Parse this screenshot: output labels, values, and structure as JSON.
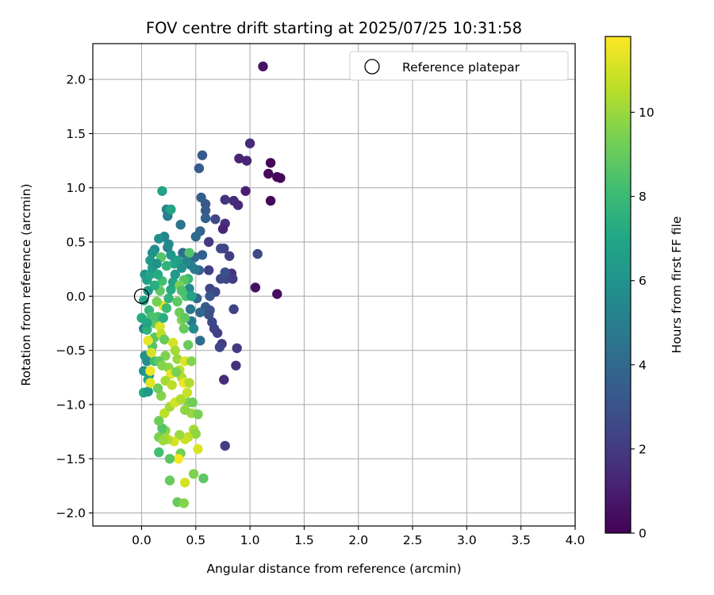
{
  "chart_data": {
    "type": "scatter",
    "title": "FOV centre drift starting at 2025/07/25 10:31:58",
    "xlabel": "Angular distance from reference (arcmin)",
    "ylabel": "Rotation from reference (arcmin)",
    "xlim": [
      -0.45,
      4.0
    ],
    "ylim": [
      -2.12,
      2.33
    ],
    "xticks": [
      0.0,
      0.5,
      1.0,
      1.5,
      2.0,
      2.5,
      3.0,
      3.5,
      4.0
    ],
    "xtick_labels": [
      "0.0",
      "0.5",
      "1.0",
      "1.5",
      "2.0",
      "2.5",
      "3.0",
      "3.5",
      "4.0"
    ],
    "yticks": [
      -2.0,
      -1.5,
      -1.0,
      -0.5,
      0.0,
      0.5,
      1.0,
      1.5,
      2.0
    ],
    "ytick_labels": [
      "−2.0",
      "−1.5",
      "−1.0",
      "−0.5",
      "0.0",
      "0.5",
      "1.0",
      "1.5",
      "2.0"
    ],
    "grid": true,
    "legend": {
      "position": "top-right",
      "entries": [
        {
          "label": "Reference platepar",
          "marker": "open-circle"
        }
      ]
    },
    "reference_point": {
      "x": 0.0,
      "y": 0.0
    },
    "colorbar": {
      "label": "Hours from first FF file",
      "range": [
        0,
        11.8
      ],
      "ticks": [
        0,
        2,
        4,
        6,
        8,
        10
      ],
      "tick_labels": [
        "0",
        "2",
        "4",
        "6",
        "8",
        "10"
      ],
      "colormap": "viridis"
    },
    "points": [
      {
        "x": 1.12,
        "y": 2.12,
        "c": 0.6
      },
      {
        "x": 1.19,
        "y": 1.23,
        "c": 0.2
      },
      {
        "x": 1.17,
        "y": 1.13,
        "c": 0.3
      },
      {
        "x": 1.25,
        "y": 1.1,
        "c": 0.3
      },
      {
        "x": 1.28,
        "y": 1.09,
        "c": 0.2
      },
      {
        "x": 1.19,
        "y": 0.88,
        "c": 0.2
      },
      {
        "x": 1.25,
        "y": 0.02,
        "c": 0.4
      },
      {
        "x": 1.05,
        "y": 0.08,
        "c": 0.5
      },
      {
        "x": 1.0,
        "y": 1.41,
        "c": 1.4
      },
      {
        "x": 0.97,
        "y": 1.25,
        "c": 1.2
      },
      {
        "x": 0.9,
        "y": 1.27,
        "c": 1.2
      },
      {
        "x": 0.96,
        "y": 0.97,
        "c": 1.0
      },
      {
        "x": 0.85,
        "y": 0.88,
        "c": 1.5
      },
      {
        "x": 0.89,
        "y": 0.84,
        "c": 1.4
      },
      {
        "x": 0.77,
        "y": 0.89,
        "c": 1.8
      },
      {
        "x": 0.77,
        "y": 0.67,
        "c": 1.6
      },
      {
        "x": 0.75,
        "y": 0.62,
        "c": 1.2
      },
      {
        "x": 0.68,
        "y": 0.71,
        "c": 2.5
      },
      {
        "x": 1.07,
        "y": 0.39,
        "c": 2.6
      },
      {
        "x": 0.81,
        "y": 0.37,
        "c": 2.2
      },
      {
        "x": 0.83,
        "y": 0.21,
        "c": 1.8
      },
      {
        "x": 0.84,
        "y": 0.16,
        "c": 2.0
      },
      {
        "x": 0.78,
        "y": 0.16,
        "c": 2.4
      },
      {
        "x": 0.73,
        "y": 0.16,
        "c": 2.6
      },
      {
        "x": 0.77,
        "y": 0.22,
        "c": 2.9
      },
      {
        "x": 0.73,
        "y": 0.44,
        "c": 2.8
      },
      {
        "x": 0.76,
        "y": 0.44,
        "c": 2.4
      },
      {
        "x": 0.62,
        "y": 0.5,
        "c": 2.0
      },
      {
        "x": 0.62,
        "y": 0.24,
        "c": 2.2
      },
      {
        "x": 0.85,
        "y": -0.12,
        "c": 2.3
      },
      {
        "x": 0.63,
        "y": 0.07,
        "c": 2.5
      },
      {
        "x": 0.68,
        "y": 0.04,
        "c": 2.6
      },
      {
        "x": 0.63,
        "y": 0.0,
        "c": 3.0
      },
      {
        "x": 0.59,
        "y": -0.1,
        "c": 3.4
      },
      {
        "x": 0.63,
        "y": -0.13,
        "c": 3.0
      },
      {
        "x": 0.62,
        "y": -0.17,
        "c": 2.8
      },
      {
        "x": 0.65,
        "y": -0.24,
        "c": 2.6
      },
      {
        "x": 0.67,
        "y": -0.3,
        "c": 2.4
      },
      {
        "x": 0.7,
        "y": -0.34,
        "c": 2.2
      },
      {
        "x": 0.74,
        "y": -0.44,
        "c": 2.0
      },
      {
        "x": 0.72,
        "y": -0.47,
        "c": 2.4
      },
      {
        "x": 0.88,
        "y": -0.48,
        "c": 2.0
      },
      {
        "x": 0.87,
        "y": -0.64,
        "c": 1.6
      },
      {
        "x": 0.76,
        "y": -0.77,
        "c": 1.5
      },
      {
        "x": 0.77,
        "y": -1.38,
        "c": 2.1
      },
      {
        "x": 0.56,
        "y": 1.3,
        "c": 3.3
      },
      {
        "x": 0.53,
        "y": 1.18,
        "c": 3.4
      },
      {
        "x": 0.59,
        "y": 0.85,
        "c": 3.2
      },
      {
        "x": 0.55,
        "y": 0.91,
        "c": 3.5
      },
      {
        "x": 0.59,
        "y": 0.79,
        "c": 3.4
      },
      {
        "x": 0.59,
        "y": 0.72,
        "c": 3.6
      },
      {
        "x": 0.54,
        "y": 0.6,
        "c": 3.8
      },
      {
        "x": 0.5,
        "y": 0.55,
        "c": 4.0
      },
      {
        "x": 0.56,
        "y": 0.38,
        "c": 3.6
      },
      {
        "x": 0.49,
        "y": 0.36,
        "c": 3.9
      },
      {
        "x": 0.43,
        "y": 0.36,
        "c": 4.0
      },
      {
        "x": 0.38,
        "y": 0.4,
        "c": 4.2
      },
      {
        "x": 0.36,
        "y": 0.66,
        "c": 4.6
      },
      {
        "x": 0.23,
        "y": 0.8,
        "c": 5.3
      },
      {
        "x": 0.24,
        "y": 0.74,
        "c": 5.0
      },
      {
        "x": 0.19,
        "y": 0.97,
        "c": 6.8
      },
      {
        "x": 0.27,
        "y": 0.8,
        "c": 6.9
      },
      {
        "x": 0.21,
        "y": 0.55,
        "c": 5.3
      },
      {
        "x": 0.24,
        "y": 0.45,
        "c": 5.2
      },
      {
        "x": 0.25,
        "y": 0.48,
        "c": 5.5
      },
      {
        "x": 0.44,
        "y": 0.4,
        "c": 8.5
      },
      {
        "x": 0.53,
        "y": 0.24,
        "c": 3.8
      },
      {
        "x": 0.51,
        "y": -0.02,
        "c": 3.9
      },
      {
        "x": 0.54,
        "y": -0.15,
        "c": 3.9
      },
      {
        "x": 0.54,
        "y": -0.41,
        "c": 4.2
      },
      {
        "x": 0.44,
        "y": 0.07,
        "c": 5.6
      },
      {
        "x": 0.45,
        "y": -0.12,
        "c": 4.6
      },
      {
        "x": 0.46,
        "y": -0.23,
        "c": 4.8
      },
      {
        "x": 0.12,
        "y": 0.43,
        "c": 5.5
      },
      {
        "x": 0.1,
        "y": 0.4,
        "c": 6.0
      },
      {
        "x": 0.08,
        "y": 0.33,
        "c": 6.3
      },
      {
        "x": 0.16,
        "y": 0.53,
        "c": 5.8
      },
      {
        "x": 0.18,
        "y": 0.36,
        "c": 8.6
      },
      {
        "x": 0.03,
        "y": 0.2,
        "c": 6.1
      },
      {
        "x": 0.05,
        "y": 0.15,
        "c": 6.6
      },
      {
        "x": 0.08,
        "y": 0.2,
        "c": 7.0
      },
      {
        "x": 0.06,
        "y": 0.05,
        "c": 6.3
      },
      {
        "x": 0.02,
        "y": -0.04,
        "c": 6.8
      },
      {
        "x": 0.0,
        "y": -0.2,
        "c": 7.2
      },
      {
        "x": 0.02,
        "y": -0.3,
        "c": 5.4
      },
      {
        "x": 0.05,
        "y": -0.31,
        "c": 7.6
      },
      {
        "x": 0.07,
        "y": -0.13,
        "c": 7.8
      },
      {
        "x": 0.03,
        "y": -0.55,
        "c": 6.0
      },
      {
        "x": 0.05,
        "y": -0.6,
        "c": 5.8
      },
      {
        "x": 0.02,
        "y": -0.69,
        "c": 5.9
      },
      {
        "x": 0.07,
        "y": -0.73,
        "c": 6.2
      },
      {
        "x": 0.06,
        "y": -0.77,
        "c": 6.8
      },
      {
        "x": 0.02,
        "y": -0.89,
        "c": 7.0
      },
      {
        "x": 0.06,
        "y": -0.88,
        "c": 6.4
      },
      {
        "x": 0.12,
        "y": -0.6,
        "c": 8.2
      },
      {
        "x": 0.1,
        "y": -0.46,
        "c": 8.6
      },
      {
        "x": 0.12,
        "y": -0.38,
        "c": 8.8
      },
      {
        "x": 0.12,
        "y": -0.25,
        "c": 9.0
      },
      {
        "x": 0.15,
        "y": -0.19,
        "c": 8.4
      },
      {
        "x": 0.17,
        "y": -0.28,
        "c": 11.2
      },
      {
        "x": 0.18,
        "y": -0.35,
        "c": 10.6
      },
      {
        "x": 0.2,
        "y": -0.09,
        "c": 11.3
      },
      {
        "x": 0.21,
        "y": -0.4,
        "c": 9.0
      },
      {
        "x": 0.22,
        "y": -0.55,
        "c": 9.5
      },
      {
        "x": 0.25,
        "y": -0.66,
        "c": 9.8
      },
      {
        "x": 0.27,
        "y": -0.72,
        "c": 11.4
      },
      {
        "x": 0.29,
        "y": -0.43,
        "c": 11.1
      },
      {
        "x": 0.31,
        "y": -0.5,
        "c": 10.2
      },
      {
        "x": 0.33,
        "y": -0.58,
        "c": 10.0
      },
      {
        "x": 0.35,
        "y": -0.68,
        "c": 10.6
      },
      {
        "x": 0.37,
        "y": -0.75,
        "c": 10.4
      },
      {
        "x": 0.39,
        "y": -0.8,
        "c": 11.5
      },
      {
        "x": 0.4,
        "y": -0.6,
        "c": 11.2
      },
      {
        "x": 0.42,
        "y": -0.89,
        "c": 10.8
      },
      {
        "x": 0.43,
        "y": -0.98,
        "c": 9.6
      },
      {
        "x": 0.47,
        "y": -0.98,
        "c": 9.2
      },
      {
        "x": 0.46,
        "y": -1.08,
        "c": 10.0
      },
      {
        "x": 0.52,
        "y": -1.09,
        "c": 9.4
      },
      {
        "x": 0.48,
        "y": -1.23,
        "c": 10.2
      },
      {
        "x": 0.5,
        "y": -1.27,
        "c": 9.8
      },
      {
        "x": 0.52,
        "y": -1.41,
        "c": 11.2
      },
      {
        "x": 0.43,
        "y": -1.3,
        "c": 10.6
      },
      {
        "x": 0.4,
        "y": -1.32,
        "c": 10.9
      },
      {
        "x": 0.35,
        "y": -1.28,
        "c": 10.0
      },
      {
        "x": 0.36,
        "y": -1.45,
        "c": 9.3
      },
      {
        "x": 0.34,
        "y": -1.5,
        "c": 11.6
      },
      {
        "x": 0.3,
        "y": -1.34,
        "c": 11.0
      },
      {
        "x": 0.24,
        "y": -1.32,
        "c": 10.4
      },
      {
        "x": 0.22,
        "y": -1.24,
        "c": 9.8
      },
      {
        "x": 0.19,
        "y": -1.22,
        "c": 8.6
      },
      {
        "x": 0.16,
        "y": -1.15,
        "c": 9.2
      },
      {
        "x": 0.16,
        "y": -1.3,
        "c": 9.4
      },
      {
        "x": 0.16,
        "y": -1.44,
        "c": 8.2
      },
      {
        "x": 0.2,
        "y": -1.33,
        "c": 10.0
      },
      {
        "x": 0.26,
        "y": -1.5,
        "c": 8.7
      },
      {
        "x": 0.26,
        "y": -1.7,
        "c": 9.0
      },
      {
        "x": 0.33,
        "y": -1.9,
        "c": 9.0
      },
      {
        "x": 0.39,
        "y": -1.91,
        "c": 9.6
      },
      {
        "x": 0.4,
        "y": -1.72,
        "c": 11.0
      },
      {
        "x": 0.48,
        "y": -1.64,
        "c": 9.5
      },
      {
        "x": 0.57,
        "y": -1.68,
        "c": 8.8
      },
      {
        "x": 0.21,
        "y": -1.08,
        "c": 10.6
      },
      {
        "x": 0.26,
        "y": -1.02,
        "c": 10.2
      },
      {
        "x": 0.31,
        "y": -0.98,
        "c": 11.0
      },
      {
        "x": 0.18,
        "y": -0.92,
        "c": 9.6
      },
      {
        "x": 0.15,
        "y": -0.85,
        "c": 9.2
      },
      {
        "x": 0.08,
        "y": -0.8,
        "c": 11.3
      },
      {
        "x": 0.08,
        "y": -0.69,
        "c": 11.5
      },
      {
        "x": 0.09,
        "y": -0.52,
        "c": 11.1
      },
      {
        "x": 0.06,
        "y": -0.41,
        "c": 11.4
      },
      {
        "x": 0.2,
        "y": -0.2,
        "c": 7.4
      },
      {
        "x": 0.23,
        "y": -0.11,
        "c": 8.0
      },
      {
        "x": 0.25,
        "y": -0.02,
        "c": 7.6
      },
      {
        "x": 0.27,
        "y": 0.06,
        "c": 7.2
      },
      {
        "x": 0.29,
        "y": 0.13,
        "c": 6.8
      },
      {
        "x": 0.31,
        "y": 0.2,
        "c": 6.4
      },
      {
        "x": 0.33,
        "y": -0.05,
        "c": 8.8
      },
      {
        "x": 0.35,
        "y": -0.15,
        "c": 9.2
      },
      {
        "x": 0.37,
        "y": -0.22,
        "c": 9.6
      },
      {
        "x": 0.39,
        "y": -0.3,
        "c": 9.0
      },
      {
        "x": 0.41,
        "y": 0.0,
        "c": 8.4
      },
      {
        "x": 0.43,
        "y": 0.16,
        "c": 7.8
      },
      {
        "x": 0.39,
        "y": 0.15,
        "c": 8.6
      },
      {
        "x": 0.35,
        "y": 0.1,
        "c": 9.4
      },
      {
        "x": 0.3,
        "y": 0.3,
        "c": 7.0
      },
      {
        "x": 0.27,
        "y": 0.38,
        "c": 6.2
      },
      {
        "x": 0.23,
        "y": 0.28,
        "c": 7.6
      },
      {
        "x": 0.19,
        "y": 0.14,
        "c": 8.2
      },
      {
        "x": 0.17,
        "y": 0.05,
        "c": 8.8
      },
      {
        "x": 0.14,
        "y": -0.05,
        "c": 9.4
      },
      {
        "x": 0.12,
        "y": 0.1,
        "c": 7.4
      },
      {
        "x": 0.1,
        "y": 0.26,
        "c": 6.4
      },
      {
        "x": 0.14,
        "y": 0.3,
        "c": 6.0
      },
      {
        "x": 0.15,
        "y": 0.2,
        "c": 7.2
      },
      {
        "x": 0.09,
        "y": -0.19,
        "c": 8.4
      },
      {
        "x": 0.05,
        "y": -0.25,
        "c": 7.0
      },
      {
        "x": 0.16,
        "y": -0.6,
        "c": 8.8
      },
      {
        "x": 0.19,
        "y": -0.64,
        "c": 9.6
      },
      {
        "x": 0.22,
        "y": -0.78,
        "c": 10.2
      },
      {
        "x": 0.28,
        "y": -0.82,
        "c": 10.6
      },
      {
        "x": 0.32,
        "y": -0.7,
        "c": 9.4
      },
      {
        "x": 0.36,
        "y": -0.95,
        "c": 10.4
      },
      {
        "x": 0.4,
        "y": -1.05,
        "c": 9.8
      },
      {
        "x": 0.44,
        "y": -0.8,
        "c": 10.4
      },
      {
        "x": 0.46,
        "y": -0.6,
        "c": 9.6
      },
      {
        "x": 0.43,
        "y": -0.45,
        "c": 9.0
      },
      {
        "x": 0.4,
        "y": -0.2,
        "c": 8.8
      },
      {
        "x": 0.37,
        "y": 0.05,
        "c": 8.4
      },
      {
        "x": 0.46,
        "y": 0.0,
        "c": 6.8
      },
      {
        "x": 0.48,
        "y": -0.3,
        "c": 5.6
      },
      {
        "x": 0.49,
        "y": 0.25,
        "c": 4.8
      },
      {
        "x": 0.45,
        "y": 0.29,
        "c": 5.0
      },
      {
        "x": 0.41,
        "y": 0.32,
        "c": 5.4
      },
      {
        "x": 0.37,
        "y": 0.26,
        "c": 6.0
      },
      {
        "x": 0.33,
        "y": 0.33,
        "c": 6.6
      }
    ]
  }
}
